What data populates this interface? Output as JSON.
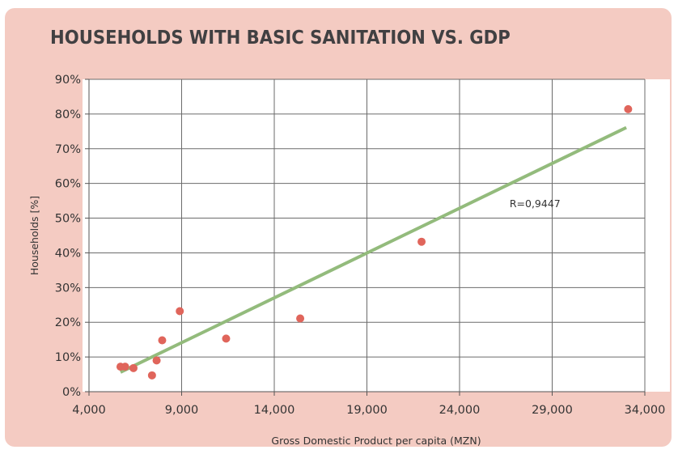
{
  "chart_data": {
    "type": "scatter",
    "title": "HOUSEHOLDS WITH BASIC SANITATION VS. GDP",
    "xlabel": "Gross Domestic Product per capita (MZN)",
    "ylabel": "Households [%]",
    "xlim": [
      4000,
      34000
    ],
    "ylim": [
      0,
      90
    ],
    "x_ticks": [
      4000,
      9000,
      14000,
      19000,
      24000,
      29000,
      34000
    ],
    "x_tick_labels": [
      "4,000",
      "9,000",
      "14,000",
      "19,000",
      "24,000",
      "29,000",
      "34,000"
    ],
    "y_ticks": [
      0,
      10,
      20,
      30,
      40,
      50,
      60,
      70,
      80,
      90
    ],
    "y_tick_labels": [
      "0%",
      "10%",
      "20%",
      "30%",
      "40%",
      "50%",
      "60%",
      "70%",
      "80%",
      "90%"
    ],
    "grid": true,
    "series": [
      {
        "color": "#e0655b",
        "points": [
          {
            "x": 5700,
            "y": 7.2
          },
          {
            "x": 5950,
            "y": 7.2
          },
          {
            "x": 6400,
            "y": 6.8
          },
          {
            "x": 7400,
            "y": 4.7
          },
          {
            "x": 7650,
            "y": 9.0
          },
          {
            "x": 7950,
            "y": 14.8
          },
          {
            "x": 8900,
            "y": 23.2
          },
          {
            "x": 11400,
            "y": 15.3
          },
          {
            "x": 15400,
            "y": 21.1
          },
          {
            "x": 21950,
            "y": 43.2
          },
          {
            "x": 33100,
            "y": 81.4
          }
        ]
      }
    ],
    "trendline": {
      "type": "linear",
      "color": "#93bb7c",
      "from": {
        "x": 5700,
        "y": 5.6
      },
      "to": {
        "x": 33000,
        "y": 76.1
      }
    },
    "annotations": [
      {
        "text": "R=0,9447",
        "x": 26700,
        "y": 53.2
      }
    ]
  }
}
